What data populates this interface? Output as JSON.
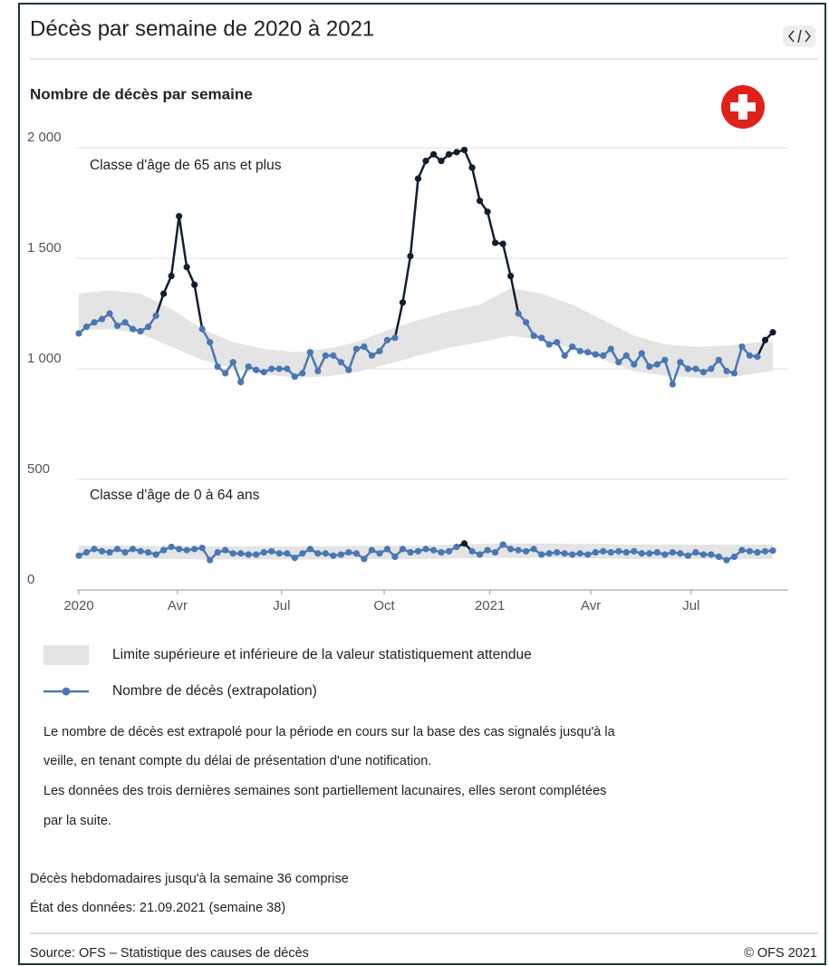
{
  "chart_data": {
    "type": "line",
    "title": "Décès par semaine de 2020 à 2021",
    "subtitle": "Nombre de décès par semaine",
    "x": [
      1,
      2,
      3,
      4,
      5,
      6,
      7,
      8,
      9,
      10,
      11,
      12,
      13,
      14,
      15,
      16,
      17,
      18,
      19,
      20,
      21,
      22,
      23,
      24,
      25,
      26,
      27,
      28,
      29,
      30,
      31,
      32,
      33,
      34,
      35,
      36,
      37,
      38,
      39,
      40,
      41,
      42,
      43,
      44,
      45,
      46,
      47,
      48,
      49,
      50,
      51,
      52,
      53,
      54,
      55,
      56,
      57,
      58,
      59,
      60,
      61,
      62,
      63,
      64,
      65,
      66,
      67,
      68,
      69,
      70,
      71,
      72,
      73,
      74,
      75,
      76,
      77,
      78,
      79,
      80,
      81,
      82,
      83,
      84,
      85,
      86,
      87,
      88,
      89,
      90,
      91
    ],
    "xlim": [
      1,
      91
    ],
    "xticks": [
      {
        "value": 1,
        "label": "2020"
      },
      {
        "value": 13.8,
        "label": "Avr"
      },
      {
        "value": 27.3,
        "label": "Jul"
      },
      {
        "value": 40.6,
        "label": "Oct"
      },
      {
        "value": 54.3,
        "label": "2021"
      },
      {
        "value": 67.4,
        "label": "Avr"
      },
      {
        "value": 80.4,
        "label": "Jul"
      }
    ],
    "ylim": [
      0,
      2000
    ],
    "yticks": [
      0,
      500,
      {
        "value": 1000,
        "label": "1 000"
      },
      {
        "value": 1500,
        "label": "1 500"
      },
      {
        "value": 2000,
        "label": "2 000"
      }
    ],
    "grid": true,
    "band_color": "#e4e4e4",
    "series": [
      {
        "name": "Classe d'âge de 65 ans et plus",
        "color": "#4a77b4",
        "excess_color": "#121e30",
        "values": [
          1160,
          1190,
          1210,
          1225,
          1250,
          1195,
          1210,
          1180,
          1170,
          1190,
          1240,
          1340,
          1420,
          1690,
          1460,
          1380,
          1180,
          1120,
          1010,
          980,
          1030,
          940,
          1010,
          995,
          985,
          1000,
          1000,
          1000,
          965,
          980,
          1075,
          990,
          1060,
          1060,
          1030,
          995,
          1090,
          1100,
          1060,
          1080,
          1130,
          1140,
          1300,
          1510,
          1860,
          1940,
          1970,
          1940,
          1970,
          1980,
          1990,
          1910,
          1760,
          1710,
          1570,
          1565,
          1420,
          1250,
          1210,
          1150,
          1140,
          1110,
          1120,
          1060,
          1100,
          1080,
          1075,
          1065,
          1060,
          1090,
          1030,
          1060,
          1020,
          1070,
          1010,
          1020,
          1040,
          930,
          1030,
          1000,
          1000,
          985,
          1000,
          1040,
          990,
          980,
          1100,
          1060,
          1055,
          1130,
          1165
        ],
        "band": {
          "x": [
            1,
            5,
            9,
            13,
            17,
            21,
            25,
            29,
            33,
            37,
            41,
            45,
            49,
            53,
            57,
            61,
            65,
            69,
            73,
            77,
            81,
            85,
            89,
            91
          ],
          "upper": [
            1340,
            1355,
            1340,
            1270,
            1180,
            1120,
            1090,
            1075,
            1090,
            1120,
            1175,
            1220,
            1260,
            1290,
            1365,
            1340,
            1290,
            1220,
            1150,
            1110,
            1100,
            1105,
            1120,
            1125
          ],
          "lower": [
            1175,
            1180,
            1160,
            1100,
            1040,
            1000,
            975,
            960,
            965,
            985,
            1020,
            1060,
            1095,
            1120,
            1150,
            1130,
            1090,
            1040,
            990,
            970,
            960,
            960,
            980,
            990
          ]
        }
      },
      {
        "name": "Classe d'âge de 0 à 64 ans",
        "color": "#4a77b4",
        "excess_color": "#121e30",
        "values": [
          155,
          170,
          185,
          175,
          170,
          185,
          170,
          185,
          175,
          170,
          160,
          180,
          195,
          185,
          180,
          185,
          190,
          135,
          170,
          180,
          165,
          165,
          160,
          160,
          170,
          175,
          165,
          165,
          145,
          165,
          185,
          165,
          165,
          155,
          160,
          170,
          165,
          140,
          180,
          165,
          185,
          150,
          185,
          170,
          175,
          185,
          180,
          170,
          175,
          195,
          210,
          175,
          160,
          180,
          170,
          205,
          185,
          180,
          175,
          185,
          160,
          165,
          170,
          165,
          160,
          165,
          160,
          170,
          175,
          170,
          175,
          170,
          175,
          165,
          165,
          170,
          160,
          170,
          165,
          155,
          170,
          160,
          160,
          150,
          135,
          150,
          180,
          175,
          170,
          175,
          178
        ],
        "band": {
          "x": [
            1,
            5,
            9,
            13,
            17,
            21,
            25,
            29,
            33,
            37,
            41,
            45,
            49,
            53,
            57,
            61,
            65,
            69,
            73,
            77,
            81,
            85,
            89,
            91
          ],
          "upper": [
            200,
            200,
            200,
            200,
            198,
            198,
            198,
            198,
            198,
            200,
            200,
            200,
            205,
            208,
            210,
            210,
            208,
            208,
            205,
            205,
            205,
            205,
            205,
            205
          ],
          "lower": [
            140,
            140,
            140,
            140,
            138,
            138,
            138,
            138,
            138,
            140,
            140,
            140,
            142,
            145,
            145,
            145,
            142,
            142,
            140,
            140,
            140,
            140,
            140,
            140
          ]
        }
      }
    ],
    "legend": {
      "band": "Limite supérieure et inférieure de la valeur statistiquement attendue",
      "line": "Nombre de décès (extrapolation)"
    }
  },
  "notes": [
    "Le nombre de décès est extrapolé pour la période en cours sur la base des cas signalés jusqu'à la",
    "veille, en tenant compte du délai de présentation d'une notification.",
    "Les données des trois dernières semaines sont partiellement lacunaires, elles seront complétées",
    "par la suite."
  ],
  "status": [
    "Décès hebdomadaires jusqu'à la semaine 36 comprise",
    "État des données: 21.09.2021 (semaine 38)"
  ],
  "footer": {
    "source": "Source: OFS – Statistique des causes de décès",
    "copyright": "© OFS 2021"
  }
}
